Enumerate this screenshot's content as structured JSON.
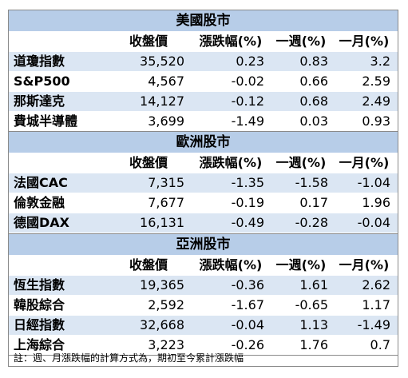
{
  "sections": [
    {
      "title": "美國股市",
      "headers": [
        "收盤價",
        "漲跌幅(%)",
        "一週(%)",
        "一月(%)"
      ],
      "rows": [
        {
          "name": "道瓊指數",
          "close": "35,520",
          "chg": "0.23",
          "week": "0.83",
          "month": "3.2"
        },
        {
          "name": "S&P500",
          "close": "4,567",
          "chg": "-0.02",
          "week": "0.66",
          "month": "2.59"
        },
        {
          "name": "那斯達克",
          "close": "14,127",
          "chg": "-0.12",
          "week": "0.68",
          "month": "2.49"
        },
        {
          "name": "費城半導體",
          "close": "3,699",
          "chg": "-1.49",
          "week": "0.03",
          "month": "0.93"
        }
      ]
    },
    {
      "title": "歐洲股市",
      "headers": [
        "收盤價",
        "漲跌幅(%)",
        "一週(%)",
        "一月(%)"
      ],
      "rows": [
        {
          "name": "法國CAC",
          "close": "7,315",
          "chg": "-1.35",
          "week": "-1.58",
          "month": "-1.04"
        },
        {
          "name": "倫敦金融",
          "close": "7,677",
          "chg": "-0.19",
          "week": "0.17",
          "month": "1.96"
        },
        {
          "name": "德國DAX",
          "close": "16,131",
          "chg": "-0.49",
          "week": "-0.28",
          "month": "-0.04"
        }
      ]
    },
    {
      "title": "亞洲股市",
      "headers": [
        "收盤價",
        "漲跌幅(%)",
        "一週(%)",
        "一月(%)"
      ],
      "rows": [
        {
          "name": "恆生指數",
          "close": "19,365",
          "chg": "-0.36",
          "week": "1.61",
          "month": "2.62"
        },
        {
          "name": "韓股綜合",
          "close": "2,592",
          "chg": "-1.67",
          "week": "-0.65",
          "month": "1.17"
        },
        {
          "name": "日經指數",
          "close": "32,668",
          "chg": "-0.04",
          "week": "1.13",
          "month": "-1.49"
        },
        {
          "name": "上海綜合",
          "close": "3,223",
          "chg": "-0.26",
          "week": "1.76",
          "month": "0.7"
        }
      ]
    }
  ],
  "note": "註：週、月漲跌幅的計算方式為，期初至今累計漲跌幅",
  "colors": {
    "section_header_bg": "#b7cde8",
    "row_alt_bg": "#dbe6f3",
    "border": "#8a8a8a"
  }
}
